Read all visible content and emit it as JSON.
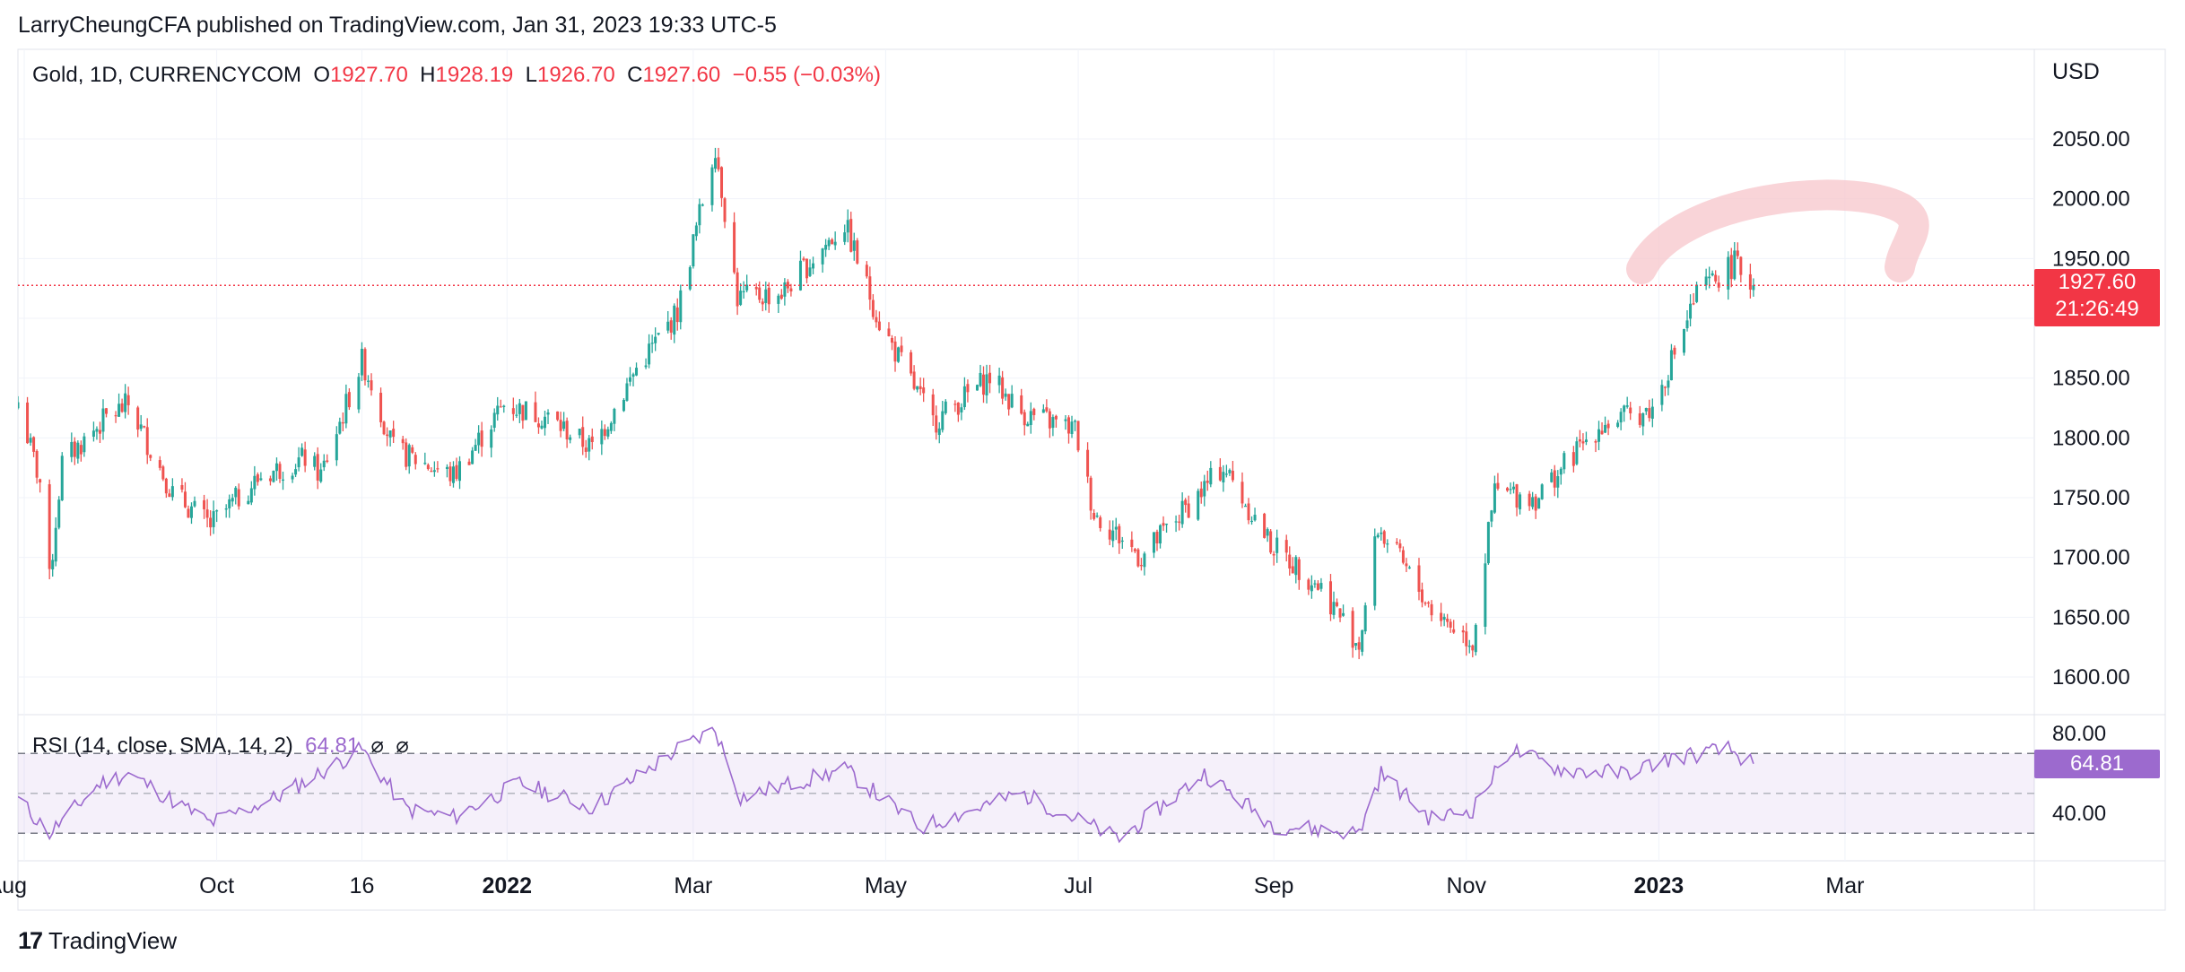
{
  "publisher_line": "LarryCheungCFA published on TradingView.com, Jan 31, 2023 19:33 UTC-5",
  "legend": {
    "symbol": "Gold, 1D, CURRENCYCOM",
    "o_label": "O",
    "o_value": "1927.70",
    "h_label": "H",
    "h_value": "1928.19",
    "l_label": "L",
    "l_value": "1926.70",
    "c_label": "C",
    "c_value": "1927.60",
    "change": "−0.55 (−0.03%)"
  },
  "currency": "USD",
  "last_price": "1927.60",
  "countdown": "21:26:49",
  "rsi": {
    "label": "RSI (14, close, SMA, 14, 2)",
    "value": "64.81",
    "icons": [
      "⌀",
      "⌀"
    ]
  },
  "footer": {
    "logo_glyph": "17",
    "brand": "TradingView"
  },
  "colors": {
    "up": "#26a69a",
    "down": "#ef5350",
    "rsi_line": "#9c6ace",
    "price_line": "#f23645",
    "arc": "#f7c6cb"
  },
  "chart_data": [
    {
      "type": "candlestick",
      "symbol": "Gold",
      "interval": "1D",
      "ylim": [
        1575,
        2075
      ],
      "y_ticks": [
        "2050.00",
        "2000.00",
        "1950.00",
        "1900.00",
        "1850.00",
        "1800.00",
        "1750.00",
        "1700.00",
        "1650.00",
        "1600.00"
      ],
      "x_ticks": [
        "Aug",
        "Oct",
        "16",
        "2022",
        "Mar",
        "May",
        "Jul",
        "Sep",
        "Nov",
        "2023",
        "Mar"
      ],
      "x_ticks_bold": [
        "2022",
        "2023"
      ],
      "x_tick_dates": [
        "2021-08-01",
        "2021-10-01",
        "2021-11-16",
        "2022-01-01",
        "2022-03-01",
        "2022-05-01",
        "2022-07-01",
        "2022-09-01",
        "2022-11-01",
        "2023-01-01",
        "2023-03-01"
      ],
      "x_range": [
        "2021-07-30",
        "2023-04-30"
      ],
      "last_close": 1927.6,
      "grid": true,
      "series": [
        {
          "date": "2021-07-30",
          "close": 1830
        },
        {
          "date": "2021-08-06",
          "close": 1763
        },
        {
          "date": "2021-08-09",
          "close": 1680
        },
        {
          "date": "2021-08-13",
          "close": 1779
        },
        {
          "date": "2021-08-27",
          "close": 1817
        },
        {
          "date": "2021-09-03",
          "close": 1828
        },
        {
          "date": "2021-09-17",
          "close": 1754
        },
        {
          "date": "2021-09-29",
          "close": 1727
        },
        {
          "date": "2021-10-15",
          "close": 1768
        },
        {
          "date": "2021-10-29",
          "close": 1783
        },
        {
          "date": "2021-11-03",
          "close": 1769
        },
        {
          "date": "2021-11-16",
          "close": 1864
        },
        {
          "date": "2021-11-19",
          "close": 1846
        },
        {
          "date": "2021-11-26",
          "close": 1790
        },
        {
          "date": "2021-12-15",
          "close": 1768
        },
        {
          "date": "2021-12-31",
          "close": 1828
        },
        {
          "date": "2022-01-14",
          "close": 1817
        },
        {
          "date": "2022-01-28",
          "close": 1791
        },
        {
          "date": "2022-02-11",
          "close": 1858
        },
        {
          "date": "2022-02-24",
          "close": 1905
        },
        {
          "date": "2022-03-08",
          "close": 2045
        },
        {
          "date": "2022-03-15",
          "close": 1917
        },
        {
          "date": "2022-03-29",
          "close": 1921
        },
        {
          "date": "2022-04-18",
          "close": 1979
        },
        {
          "date": "2022-04-29",
          "close": 1897
        },
        {
          "date": "2022-05-16",
          "close": 1813
        },
        {
          "date": "2022-06-03",
          "close": 1851
        },
        {
          "date": "2022-06-13",
          "close": 1821
        },
        {
          "date": "2022-06-30",
          "close": 1807
        },
        {
          "date": "2022-07-06",
          "close": 1737
        },
        {
          "date": "2022-07-21",
          "close": 1700
        },
        {
          "date": "2022-08-16",
          "close": 1776
        },
        {
          "date": "2022-08-31",
          "close": 1711
        },
        {
          "date": "2022-09-16",
          "close": 1675
        },
        {
          "date": "2022-09-28",
          "close": 1627
        },
        {
          "date": "2022-10-04",
          "close": 1725
        },
        {
          "date": "2022-10-21",
          "close": 1657
        },
        {
          "date": "2022-11-03",
          "close": 1629
        },
        {
          "date": "2022-11-10",
          "close": 1755
        },
        {
          "date": "2022-11-23",
          "close": 1750
        },
        {
          "date": "2022-12-13",
          "close": 1810
        },
        {
          "date": "2022-12-30",
          "close": 1824
        },
        {
          "date": "2023-01-13",
          "close": 1920
        },
        {
          "date": "2023-01-25",
          "close": 1946
        },
        {
          "date": "2023-01-31",
          "close": 1927.6
        }
      ]
    },
    {
      "type": "line",
      "name": "RSI (14, close, SMA, 14, 2)",
      "ylim": [
        25,
        90
      ],
      "y_ticks": [
        "80.00",
        "40.00"
      ],
      "bands": [
        70,
        50,
        30
      ],
      "last_value": 64.81,
      "series": [
        {
          "date": "2021-07-30",
          "value": 47
        },
        {
          "date": "2021-08-09",
          "value": 30
        },
        {
          "date": "2021-08-25",
          "value": 55
        },
        {
          "date": "2021-09-03",
          "value": 60
        },
        {
          "date": "2021-09-29",
          "value": 35
        },
        {
          "date": "2021-10-20",
          "value": 48
        },
        {
          "date": "2021-11-16",
          "value": 72
        },
        {
          "date": "2021-11-30",
          "value": 42
        },
        {
          "date": "2021-12-15",
          "value": 38
        },
        {
          "date": "2022-01-05",
          "value": 55
        },
        {
          "date": "2022-01-28",
          "value": 43
        },
        {
          "date": "2022-02-24",
          "value": 72
        },
        {
          "date": "2022-03-08",
          "value": 82
        },
        {
          "date": "2022-03-16",
          "value": 48
        },
        {
          "date": "2022-04-18",
          "value": 62
        },
        {
          "date": "2022-05-12",
          "value": 33
        },
        {
          "date": "2022-06-13",
          "value": 50
        },
        {
          "date": "2022-07-14",
          "value": 27
        },
        {
          "date": "2022-08-10",
          "value": 60
        },
        {
          "date": "2022-09-01",
          "value": 34
        },
        {
          "date": "2022-09-28",
          "value": 30
        },
        {
          "date": "2022-10-05",
          "value": 60
        },
        {
          "date": "2022-10-21",
          "value": 37
        },
        {
          "date": "2022-11-03",
          "value": 42
        },
        {
          "date": "2022-11-15",
          "value": 72
        },
        {
          "date": "2022-12-01",
          "value": 62
        },
        {
          "date": "2022-12-21",
          "value": 60
        },
        {
          "date": "2023-01-06",
          "value": 68
        },
        {
          "date": "2023-01-23",
          "value": 72
        },
        {
          "date": "2023-01-31",
          "value": 64.81
        }
      ]
    }
  ]
}
